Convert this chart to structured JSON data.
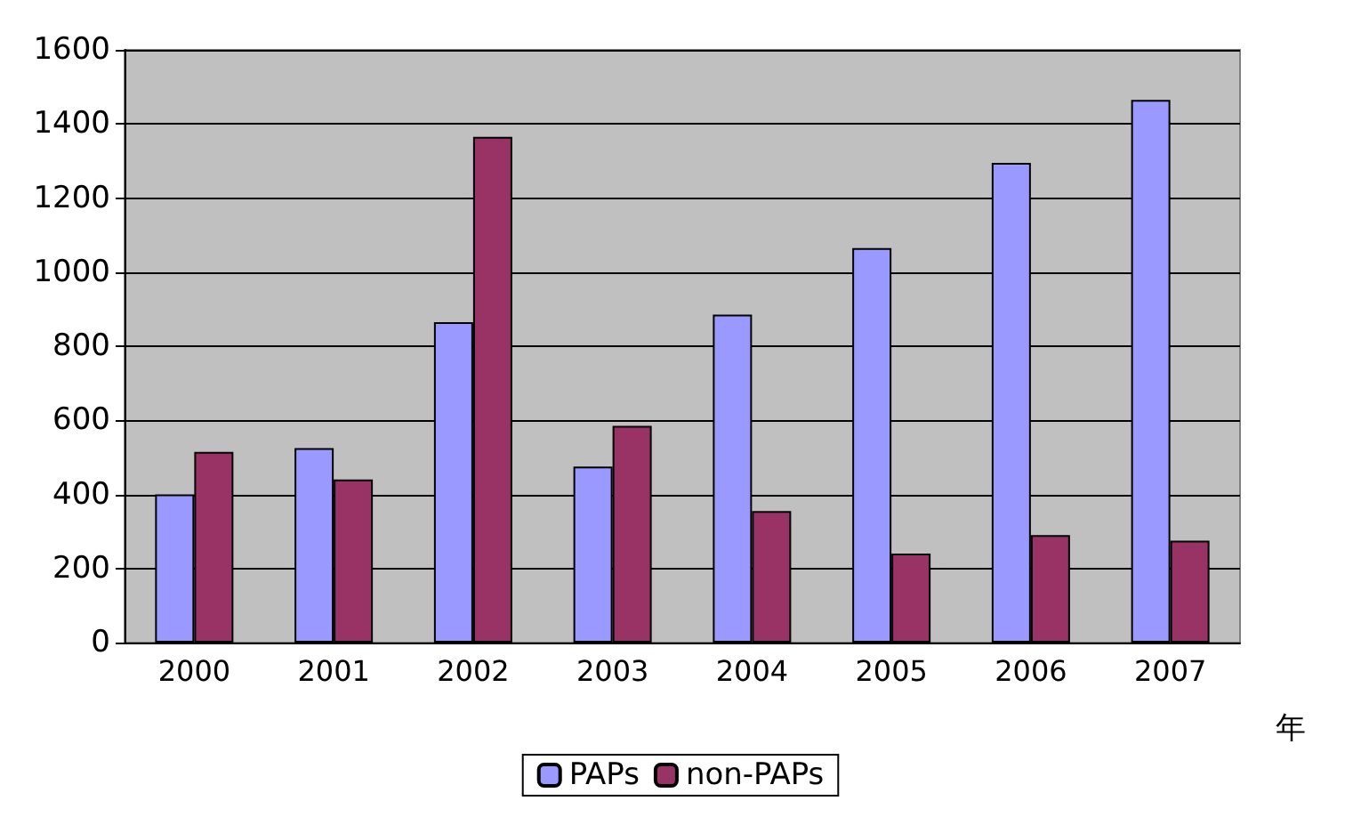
{
  "chart_data": {
    "type": "bar",
    "xlabel": "年",
    "categories": [
      "2000",
      "2001",
      "2002",
      "2003",
      "2004",
      "2005",
      "2006",
      "2007"
    ],
    "series": [
      {
        "name": "PAPs",
        "color": "#9999ff",
        "values": [
          400,
          525,
          865,
          475,
          885,
          1065,
          1295,
          1465
        ]
      },
      {
        "name": "non-PAPs",
        "color": "#993366",
        "values": [
          515,
          440,
          1365,
          585,
          355,
          240,
          290,
          275
        ]
      }
    ],
    "ylim": [
      0,
      1600
    ],
    "yticks": [
      0,
      200,
      400,
      600,
      800,
      1000,
      1200,
      1400,
      1600
    ],
    "grid": "y",
    "legend": "bottom"
  }
}
